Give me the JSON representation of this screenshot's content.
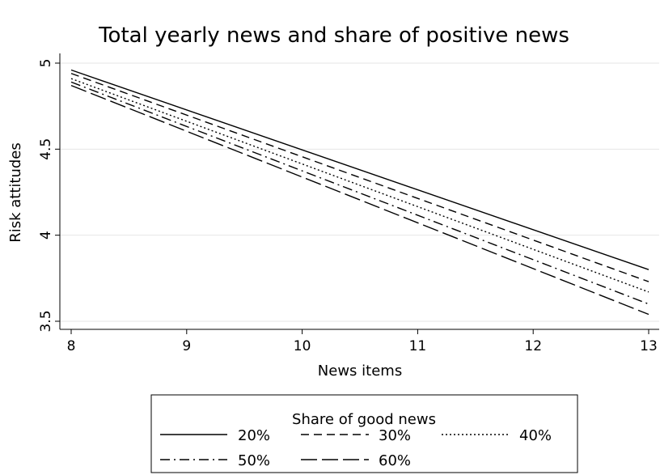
{
  "chart_data": {
    "type": "line",
    "title": "Total yearly news and share of positive news",
    "xlabel": "News items",
    "ylabel": "Risk attitudes",
    "xlim": [
      8,
      13
    ],
    "ylim": [
      3.5,
      5
    ],
    "x_ticks": [
      8,
      9,
      10,
      11,
      12,
      13
    ],
    "y_ticks": [
      3.5,
      4,
      4.5,
      5
    ],
    "x_tick_labels": [
      "8",
      "9",
      "10",
      "11",
      "12",
      "13"
    ],
    "y_tick_labels": [
      "3.5",
      "4",
      "4.5",
      "5"
    ],
    "grid": true,
    "legend": {
      "title": "Share of good news",
      "placement": "bottom"
    },
    "x": [
      8,
      13
    ],
    "series": [
      {
        "name": "20%",
        "values": [
          4.96,
          3.8
        ],
        "dash": "solid"
      },
      {
        "name": "30%",
        "values": [
          4.94,
          3.73
        ],
        "dash": "dash"
      },
      {
        "name": "40%",
        "values": [
          4.91,
          3.67
        ],
        "dash": "dot"
      },
      {
        "name": "50%",
        "values": [
          4.89,
          3.6
        ],
        "dash": "dashdot"
      },
      {
        "name": "60%",
        "values": [
          4.87,
          3.54
        ],
        "dash": "longdash"
      }
    ]
  }
}
